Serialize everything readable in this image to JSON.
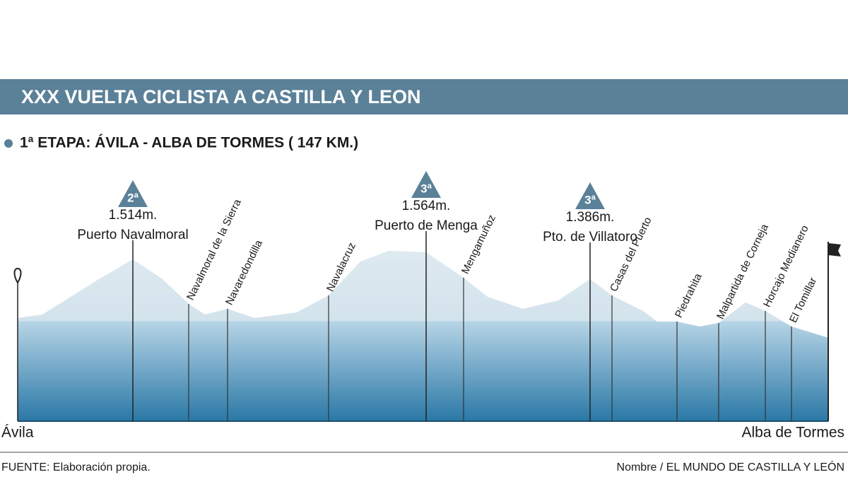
{
  "header": {
    "title": "XXX VUELTA CICLISTA A CASTILLA Y LEON",
    "stage": "1ª ETAPA: ÁVILA - ALBA DE TORMES ( 147 KM.)"
  },
  "climbs": [
    {
      "category": "2ª",
      "altitude": "1.514m.",
      "name": "Puerto Navalmoral"
    },
    {
      "category": "3ª",
      "altitude": "1.564m.",
      "name": "Puerto de Menga"
    },
    {
      "category": "3ª",
      "altitude": "1.386m.",
      "name": "Pto. de Villatoro"
    }
  ],
  "places": [
    "Navalmoral de la Sierra",
    "Navaredondilla",
    "Navalacruz",
    "Mengamuñoz",
    "Casas del Puerto",
    "Piedrahita",
    "Malpartida de Corneja",
    "Horcajo Medianero",
    "El Tomillar"
  ],
  "start": "Ávila",
  "finish": "Alba de Tormes",
  "footer": {
    "source": "FUENTE:  Elaboración propia.",
    "credit": "Nombre / EL MUNDO DE CASTILLA Y LEÓN"
  }
}
